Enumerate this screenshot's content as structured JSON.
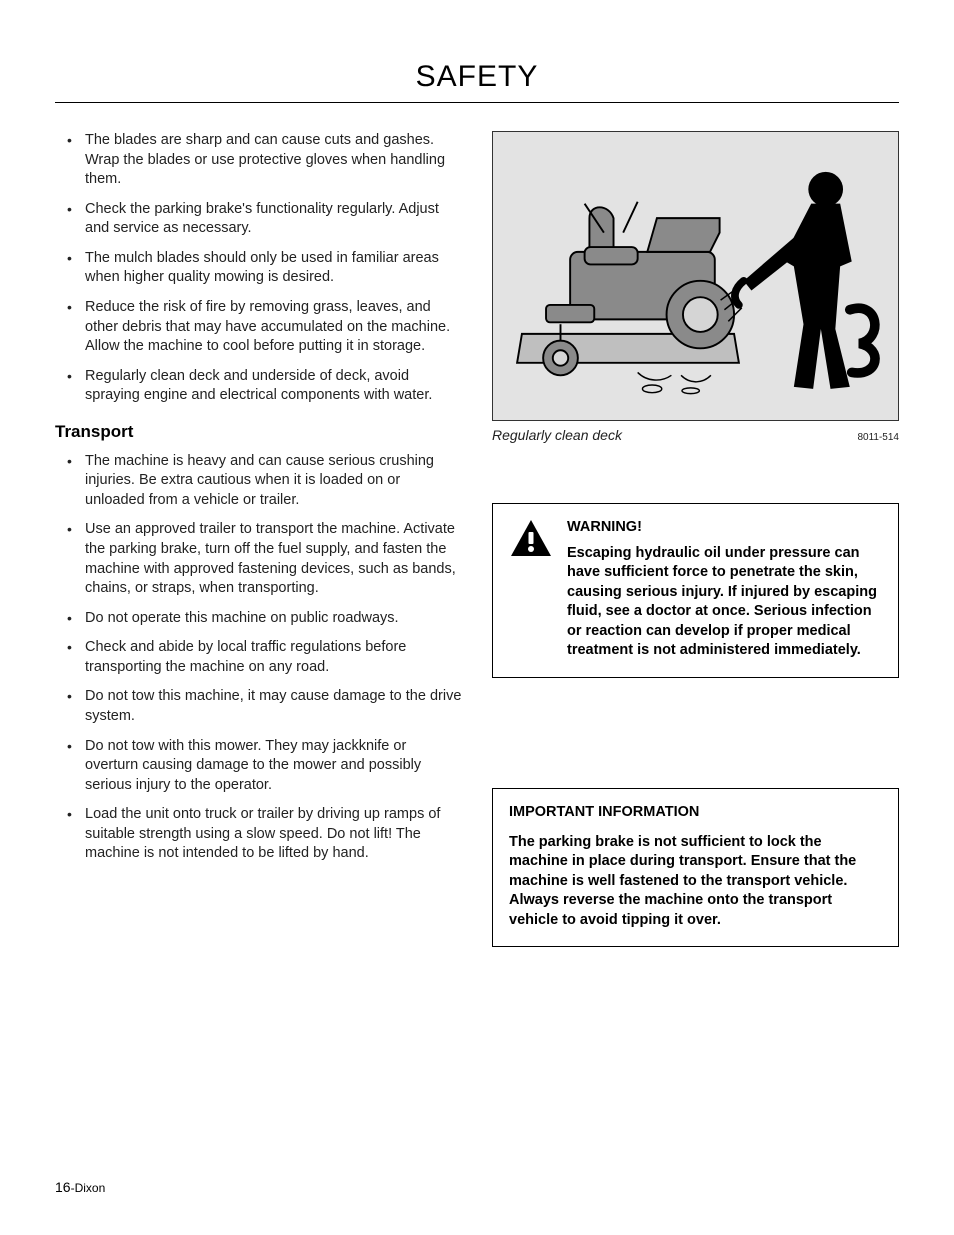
{
  "page": {
    "title": "SAFETY",
    "footer_pagenum": "16",
    "footer_brand": "-Dixon"
  },
  "left": {
    "bullets_top": [
      "The blades are sharp and can cause cuts and gashes. Wrap the blades or use protective gloves when handling them.",
      "Check the parking brake's functionality regularly. Adjust and service as necessary.",
      "The mulch blades should only be used in familiar areas when higher quality mowing is desired.",
      "Reduce the risk of fire by removing grass, leaves, and other debris that may have accumulated on the machine. Allow the machine to cool before putting it in storage.",
      "Regularly clean deck and underside of deck, avoid spraying engine and electrical components with water."
    ],
    "subhead": "Transport",
    "bullets_transport": [
      "The machine is heavy and can cause serious crushing injuries. Be extra cautious when it is loaded on or unloaded from a vehicle or trailer.",
      "Use an approved trailer to transport the machine. Activate the parking brake, turn off the fuel supply, and fasten the machine with approved fastening devices, such as bands, chains, or straps, when transporting.",
      "Do not operate this machine on public roadways.",
      "Check and abide by local traffic regulations before transporting the machine on any road.",
      "Do not tow this machine, it may cause damage to the drive system.",
      "Do not tow with this mower. They may jackknife or overturn causing damage to the mower and possibly serious injury to the operator.",
      "Load the unit onto truck or trailer by driving up ramps of suitable strength using a slow speed. Do not lift! The machine is not intended to be lifted by hand."
    ]
  },
  "right": {
    "figure": {
      "caption": "Regularly clean deck",
      "id": "8011-514",
      "bg_color": "#e3e3e3",
      "mower_color": "#8a8a8a",
      "mower_stroke": "#000000",
      "person_color": "#000000",
      "deck_color": "#bfbfbf"
    },
    "warning": {
      "title": "WARNING!",
      "body": "Escaping hydraulic oil under pressure can have sufficient force to penetrate the skin, causing serious injury. If injured by escaping fluid, see a doctor at once. Serious infection or reaction can develop if proper medical treatment is not administered immediately.",
      "icon_fill": "#000000",
      "icon_mark": "#ffffff"
    },
    "info": {
      "title": "IMPORTANT INFORMATION",
      "body": "The parking brake is not sufficient to lock the machine in place during transport. Ensure that the machine is well fastened to the transport vehicle. Always reverse the machine onto the transport vehicle to avoid tipping it over."
    }
  }
}
